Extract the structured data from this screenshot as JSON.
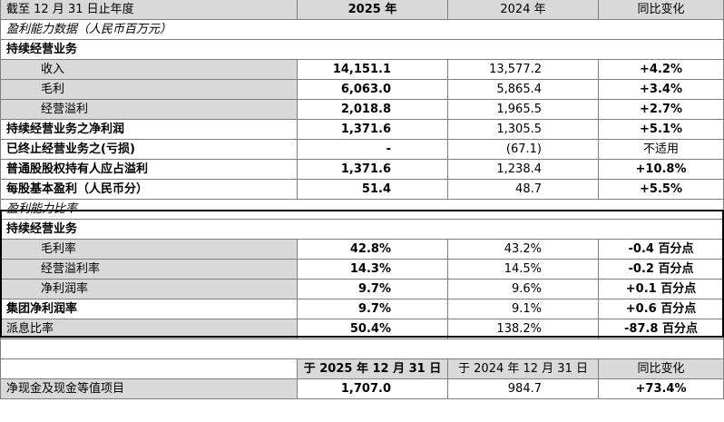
{
  "header": {
    "label": "截至 12 月 31 日止年度",
    "col_2025": "2025 年",
    "col_2024": "2024 年",
    "col_change": "同比变化"
  },
  "section_profit_data": "盈利能力数据（人民币百万元）",
  "section_profit_ratio": "盈利能力比率",
  "continuing_ops": "持续经营业务",
  "rows_profit": [
    {
      "label": "收入",
      "v2025": "14,151.1",
      "v2024": "13,577.2",
      "change": "+4.2%"
    },
    {
      "label": "毛利",
      "v2025": "6,063.0",
      "v2024": "5,865.4",
      "change": "+3.4%"
    },
    {
      "label": "经营溢利",
      "v2025": "2,018.8",
      "v2024": "1,965.5",
      "change": "+2.7%"
    },
    {
      "label": "持续经营业务之净利润",
      "v2025": "1,371.6",
      "v2024": "1,305.5",
      "change": "+5.1%"
    },
    {
      "label": "已终止经营业务之(亏损)",
      "v2025": "-",
      "v2024": "(67.1)",
      "change": "不适用"
    },
    {
      "label": "普通股股权持有人应占溢利",
      "v2025": "1,371.6",
      "v2024": "1,238.4",
      "change": "+10.8%"
    },
    {
      "label": "每股基本盈利（人民币分）",
      "v2025": "51.4",
      "v2024": "48.7",
      "change": "+5.5%"
    }
  ],
  "rows_ratio": [
    {
      "label": "毛利率",
      "v2025": "42.8%",
      "v2024": "43.2%",
      "change": "-0.4 百分点"
    },
    {
      "label": "经营溢利率",
      "v2025": "14.3%",
      "v2024": "14.5%",
      "change": "-0.2 百分点"
    },
    {
      "label": "净利润率",
      "v2025": "9.7%",
      "v2024": "9.6%",
      "change": "+0.1 百分点"
    },
    {
      "label": "集团净利润率",
      "v2025": "9.7%",
      "v2024": "9.1%",
      "change": "+0.6 百分点"
    }
  ],
  "row_payout": {
    "label": "派息比率",
    "v2025": "50.4%",
    "v2024": "138.2%",
    "change": "-87.8 百分点"
  },
  "footer_header": {
    "col_2025": "于 2025 年 12 月 31 日",
    "col_2024": "于 2024 年 12 月 31 日",
    "col_change": "同比变化"
  },
  "row_cash": {
    "label": "净现金及现金等值项目",
    "v2025": "1,707.0",
    "v2024": "984.7",
    "change": "+73.4%"
  }
}
